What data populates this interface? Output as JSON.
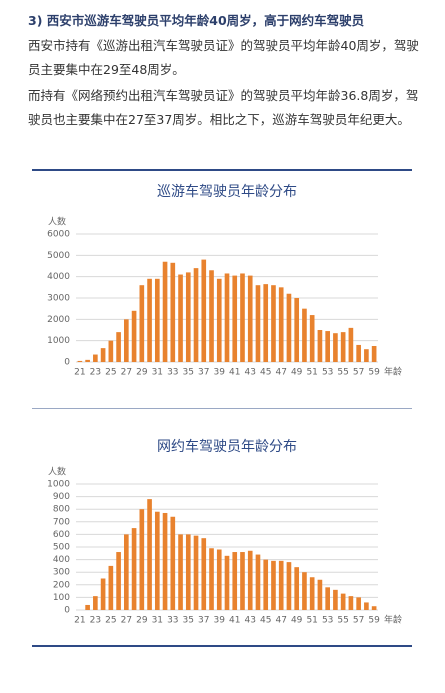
{
  "heading": "3) 西安市巡游车驾驶员平均年龄40周岁，高于网约车驾驶员",
  "paragraphs": [
    "西安市持有《巡游出租汽车驾驶员证》的驾驶员平均年龄40周岁，驾驶员主要集中在29至48周岁。",
    "而持有《网络预约出租汽车驾驶员证》的驾驶员平均年龄36.8周岁，驾驶员也主要集中在27至37周岁。相比之下，巡游车驾驶员年纪更大。"
  ],
  "chart_data": [
    {
      "type": "bar",
      "title": "巡游车驾驶员年龄分布",
      "ylabel": "人数",
      "xlabel": "年龄",
      "color": "#e8822e",
      "grid": true,
      "categories": [
        "21",
        null,
        "23",
        null,
        "25",
        null,
        "27",
        null,
        "29",
        null,
        "31",
        null,
        "33",
        null,
        "35",
        null,
        "37",
        null,
        "39",
        null,
        "41",
        null,
        "43",
        null,
        "45",
        null,
        "47",
        null,
        "49",
        null,
        "51",
        null,
        "53",
        null,
        "55",
        null,
        "57",
        null,
        "59"
      ],
      "values": [
        50,
        100,
        350,
        650,
        1000,
        1400,
        2000,
        2400,
        3600,
        3900,
        3900,
        4700,
        4650,
        4100,
        4200,
        4400,
        4800,
        4300,
        3900,
        4150,
        4050,
        4150,
        4050,
        3600,
        3650,
        3600,
        3500,
        3200,
        3000,
        2500,
        2200,
        1500,
        1450,
        1350,
        1400,
        1600,
        800,
        600,
        750
      ],
      "ylim": [
        0,
        6000
      ],
      "yticks": [
        0,
        1000,
        2000,
        3000,
        4000,
        5000,
        6000
      ]
    },
    {
      "type": "bar",
      "title": "网约车驾驶员年龄分布",
      "ylabel": "人数",
      "xlabel": "年龄",
      "color": "#e8822e",
      "grid": true,
      "categories": [
        "21",
        null,
        "23",
        null,
        "25",
        null,
        "27",
        null,
        "29",
        null,
        "31",
        null,
        "33",
        null,
        "35",
        null,
        "37",
        null,
        "39",
        null,
        "41",
        null,
        "43",
        null,
        "45",
        null,
        "47",
        null,
        "49",
        null,
        "51",
        null,
        "53",
        null,
        "55",
        null,
        "57",
        null,
        "59"
      ],
      "values": [
        0,
        40,
        110,
        250,
        350,
        460,
        600,
        650,
        800,
        880,
        780,
        770,
        740,
        600,
        600,
        590,
        570,
        490,
        480,
        430,
        460,
        460,
        470,
        440,
        400,
        390,
        390,
        380,
        340,
        300,
        260,
        240,
        180,
        160,
        130,
        110,
        100,
        60,
        30
      ],
      "ylim": [
        0,
        1000
      ],
      "yticks": [
        0,
        100,
        200,
        300,
        400,
        500,
        600,
        700,
        800,
        900,
        1000
      ]
    }
  ]
}
